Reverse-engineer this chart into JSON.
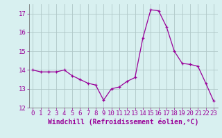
{
  "x": [
    0,
    1,
    2,
    3,
    4,
    5,
    6,
    7,
    8,
    9,
    10,
    11,
    12,
    13,
    14,
    15,
    16,
    17,
    18,
    19,
    20,
    21,
    22,
    23
  ],
  "y": [
    14.0,
    13.9,
    13.9,
    13.9,
    14.0,
    13.7,
    13.5,
    13.3,
    13.2,
    12.4,
    13.0,
    13.1,
    13.4,
    13.6,
    15.7,
    17.2,
    17.15,
    16.3,
    15.0,
    14.35,
    14.3,
    14.2,
    13.3,
    12.35
  ],
  "line_color": "#990099",
  "marker": "+",
  "marker_size": 3,
  "bg_color": "#d8f0f0",
  "grid_color": "#b0c8c8",
  "xlabel": "Windchill (Refroidissement éolien,°C)",
  "ylim": [
    12,
    17.5
  ],
  "xlim": [
    -0.5,
    23.5
  ],
  "yticks": [
    12,
    13,
    14,
    15,
    16,
    17
  ],
  "xticks": [
    0,
    1,
    2,
    3,
    4,
    5,
    6,
    7,
    8,
    9,
    10,
    11,
    12,
    13,
    14,
    15,
    16,
    17,
    18,
    19,
    20,
    21,
    22,
    23
  ],
  "tick_color": "#990099",
  "label_color": "#990099",
  "fontsize_ticks": 6.5,
  "fontsize_xlabel": 7.0,
  "linewidth": 0.9,
  "markeredgewidth": 0.9
}
